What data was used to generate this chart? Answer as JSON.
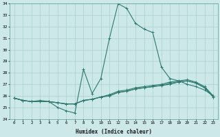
{
  "xlabel": "Humidex (Indice chaleur)",
  "x": [
    0,
    1,
    2,
    3,
    4,
    5,
    6,
    7,
    8,
    9,
    10,
    11,
    12,
    13,
    14,
    15,
    16,
    17,
    18,
    19,
    20,
    21,
    22,
    23
  ],
  "line1": [
    25.8,
    25.6,
    25.5,
    25.6,
    25.5,
    25.0,
    24.7,
    24.5,
    28.3,
    26.2,
    27.5,
    31.0,
    34.0,
    33.6,
    32.3,
    31.8,
    31.5,
    28.5,
    27.5,
    27.3,
    27.0,
    26.8,
    26.5,
    26.0
  ],
  "line2": [
    25.8,
    25.6,
    25.5,
    25.5,
    25.5,
    25.4,
    25.3,
    25.3,
    25.6,
    25.7,
    25.9,
    26.1,
    26.4,
    26.5,
    26.7,
    26.8,
    26.9,
    27.0,
    27.2,
    27.3,
    27.4,
    27.2,
    26.8,
    26.0
  ],
  "line3": [
    25.8,
    25.6,
    25.5,
    25.5,
    25.5,
    25.4,
    25.3,
    25.3,
    25.6,
    25.7,
    25.9,
    26.0,
    26.3,
    26.4,
    26.6,
    26.7,
    26.8,
    26.9,
    27.1,
    27.2,
    27.3,
    27.1,
    26.7,
    25.9
  ],
  "line4": [
    25.8,
    25.6,
    25.5,
    25.5,
    25.5,
    25.4,
    25.3,
    25.3,
    25.6,
    25.7,
    25.9,
    26.0,
    26.3,
    26.4,
    26.6,
    26.7,
    26.8,
    26.9,
    27.0,
    27.2,
    27.3,
    27.1,
    26.7,
    25.9
  ],
  "line_color": "#2a7a70",
  "bg_color": "#cce8e8",
  "grid_color": "#aacfcf",
  "ylim_min": 24,
  "ylim_max": 34,
  "yticks": [
    24,
    25,
    26,
    27,
    28,
    29,
    30,
    31,
    32,
    33,
    34
  ],
  "xticks": [
    0,
    1,
    2,
    3,
    4,
    5,
    6,
    7,
    8,
    9,
    10,
    11,
    12,
    13,
    14,
    15,
    16,
    17,
    18,
    19,
    20,
    21,
    22,
    23
  ]
}
